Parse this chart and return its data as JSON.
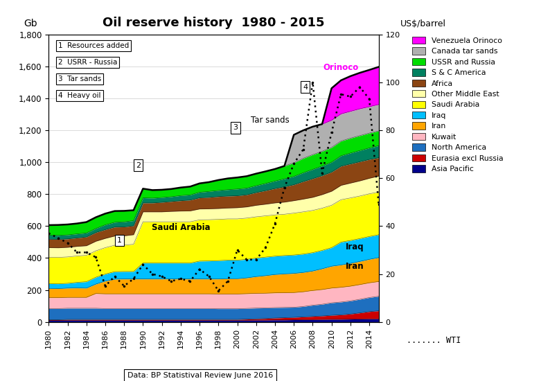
{
  "title": "Oil reserve history  1980 - 2015",
  "source_text": "Data: BP Statistival Review June 2016",
  "years": [
    1980,
    1981,
    1982,
    1983,
    1984,
    1985,
    1986,
    1987,
    1988,
    1989,
    1990,
    1991,
    1992,
    1993,
    1994,
    1995,
    1996,
    1997,
    1998,
    1999,
    2000,
    2001,
    2002,
    2003,
    2004,
    2005,
    2006,
    2007,
    2008,
    2009,
    2010,
    2011,
    2012,
    2013,
    2014,
    2015
  ],
  "ylim_left": [
    0,
    1800
  ],
  "ylim_right": [
    0,
    120
  ],
  "series": {
    "Asia Pacific": [
      10,
      10,
      11,
      11,
      11,
      11,
      11,
      11,
      11,
      11,
      11,
      11,
      11,
      11,
      11,
      11,
      11,
      11,
      11,
      11,
      11,
      11,
      12,
      12,
      13,
      13,
      14,
      15,
      15,
      16,
      17,
      17,
      18,
      19,
      20,
      20
    ],
    "Eurasia excl Russia": [
      4,
      4,
      5,
      5,
      5,
      5,
      5,
      5,
      5,
      5,
      5,
      5,
      5,
      5,
      5,
      5,
      5,
      5,
      5,
      5,
      5,
      7,
      8,
      10,
      12,
      14,
      15,
      17,
      20,
      22,
      25,
      28,
      32,
      38,
      45,
      50
    ],
    "North America": [
      70,
      70,
      70,
      70,
      70,
      70,
      68,
      68,
      68,
      68,
      68,
      68,
      68,
      68,
      68,
      68,
      68,
      68,
      67,
      67,
      67,
      67,
      67,
      66,
      65,
      64,
      63,
      65,
      70,
      73,
      78,
      80,
      82,
      85,
      88,
      91
    ],
    "Kuwait": [
      68,
      68,
      68,
      68,
      68,
      92,
      92,
      92,
      92,
      92,
      92,
      92,
      92,
      92,
      92,
      92,
      92,
      92,
      92,
      92,
      92,
      92,
      92,
      92,
      92,
      92,
      92,
      92,
      92,
      92,
      92,
      92,
      92,
      92,
      92,
      92
    ],
    "Iran": [
      58,
      57,
      58,
      59,
      58,
      59,
      80,
      92,
      93,
      93,
      93,
      93,
      93,
      93,
      93,
      93,
      93,
      93,
      94,
      96,
      96,
      99,
      105,
      110,
      115,
      118,
      120,
      121,
      122,
      130,
      137,
      140,
      143,
      145,
      147,
      150
    ],
    "Iraq": [
      30,
      30,
      30,
      35,
      40,
      43,
      44,
      47,
      47,
      47,
      100,
      100,
      100,
      100,
      100,
      100,
      112,
      113,
      115,
      116,
      116,
      116,
      116,
      116,
      115,
      115,
      115,
      115,
      115,
      115,
      116,
      143,
      143,
      143,
      143,
      143
    ],
    "Saudi Arabia": [
      165,
      165,
      165,
      165,
      165,
      165,
      165,
      165,
      165,
      170,
      258,
      258,
      258,
      258,
      258,
      258,
      258,
      258,
      258,
      258,
      258,
      258,
      258,
      258,
      258,
      258,
      262,
      264,
      264,
      264,
      265,
      265,
      266,
      266,
      267,
      267
    ],
    "Other Middle East": [
      60,
      60,
      60,
      60,
      60,
      60,
      58,
      58,
      58,
      60,
      62,
      62,
      62,
      65,
      67,
      68,
      68,
      68,
      68,
      68,
      70,
      70,
      72,
      73,
      75,
      76,
      78,
      80,
      82,
      85,
      88,
      90,
      93,
      95,
      97,
      100
    ],
    "Africa": [
      53,
      53,
      53,
      53,
      55,
      55,
      55,
      56,
      56,
      56,
      56,
      56,
      60,
      62,
      65,
      68,
      70,
      72,
      75,
      75,
      75,
      76,
      80,
      85,
      90,
      96,
      100,
      110,
      117,
      119,
      120,
      120,
      120,
      120,
      118,
      115
    ],
    "S & C America": [
      25,
      25,
      25,
      25,
      25,
      25,
      30,
      30,
      32,
      32,
      32,
      30,
      30,
      30,
      32,
      32,
      35,
      37,
      38,
      40,
      42,
      42,
      43,
      45,
      47,
      50,
      52,
      55,
      58,
      60,
      62,
      65,
      68,
      70,
      72,
      75
    ],
    "USSR and Russia": [
      63,
      65,
      65,
      65,
      68,
      70,
      70,
      70,
      68,
      65,
      57,
      50,
      48,
      48,
      50,
      52,
      55,
      58,
      65,
      70,
      72,
      74,
      75,
      75,
      75,
      80,
      85,
      90,
      92,
      92,
      92,
      92,
      93,
      93,
      93,
      93
    ],
    "Canada tar sands": [
      0,
      0,
      0,
      0,
      0,
      0,
      0,
      0,
      0,
      0,
      0,
      0,
      0,
      0,
      0,
      0,
      0,
      0,
      0,
      0,
      0,
      0,
      0,
      0,
      0,
      0,
      175,
      175,
      175,
      170,
      170,
      170,
      168,
      168,
      165,
      165
    ],
    "Venezuela Orinoco": [
      0,
      0,
      0,
      0,
      0,
      0,
      0,
      0,
      0,
      0,
      0,
      0,
      0,
      0,
      0,
      0,
      0,
      0,
      0,
      0,
      0,
      0,
      0,
      0,
      0,
      0,
      0,
      0,
      0,
      0,
      200,
      210,
      220,
      225,
      230,
      235
    ]
  },
  "colors": {
    "Asia Pacific": "#00008B",
    "Eurasia excl Russia": "#CC0000",
    "North America": "#1E6FBF",
    "Kuwait": "#FFB6C1",
    "Iran": "#FFA500",
    "Iraq": "#00BFFF",
    "Saudi Arabia": "#FFFF00",
    "Other Middle East": "#FFFFAA",
    "Africa": "#8B4513",
    "S & C America": "#008060",
    "USSR and Russia": "#00DD00",
    "Canada tar sands": "#B0B0B0",
    "Venezuela Orinoco": "#FF00FF"
  },
  "wti": {
    "years": [
      1980,
      1981,
      1982,
      1983,
      1984,
      1985,
      1986,
      1987,
      1988,
      1989,
      1990,
      1991,
      1992,
      1993,
      1994,
      1995,
      1996,
      1997,
      1998,
      1999,
      2000,
      2001,
      2002,
      2003,
      2004,
      2005,
      2006,
      2007,
      2008,
      2009,
      2010,
      2011,
      2012,
      2013,
      2014,
      2015
    ],
    "prices": [
      37,
      35,
      33,
      29,
      29,
      27,
      15,
      19,
      15,
      18,
      24,
      20,
      19,
      17,
      18,
      17,
      22,
      19,
      13,
      17,
      30,
      26,
      26,
      31,
      41,
      56,
      66,
      72,
      100,
      62,
      79,
      95,
      94,
      98,
      93,
      49
    ]
  },
  "legend_entries": [
    [
      "Venezuela Orinoco",
      "#FF00FF"
    ],
    [
      "Canada tar sands",
      "#B0B0B0"
    ],
    [
      "USSR and Russia",
      "#00DD00"
    ],
    [
      "S & C America",
      "#008060"
    ],
    [
      "Africa",
      "#8B4513"
    ],
    [
      "Other Middle East",
      "#FFFFAA"
    ],
    [
      "Saudi Arabia",
      "#FFFF00"
    ],
    [
      "Iraq",
      "#00BFFF"
    ],
    [
      "Iran",
      "#FFA500"
    ],
    [
      "Kuwait",
      "#FFB6C1"
    ],
    [
      "North America",
      "#1E6FBF"
    ],
    [
      "Eurasia excl Russia",
      "#CC0000"
    ],
    [
      "Asia Pacific",
      "#00008B"
    ]
  ],
  "stack_order": [
    "Asia Pacific",
    "Eurasia excl Russia",
    "North America",
    "Kuwait",
    "Iran",
    "Iraq",
    "Saudi Arabia",
    "Other Middle East",
    "Africa",
    "S & C America",
    "USSR and Russia",
    "Canada tar sands",
    "Venezuela Orinoco"
  ],
  "left_boxes": [
    [
      1981,
      1730,
      "1  Resources added"
    ],
    [
      1981,
      1625,
      "2  USRR - Russia"
    ],
    [
      1981,
      1520,
      "3  Tar sands"
    ],
    [
      1981,
      1415,
      "4  Heavy oil"
    ]
  ],
  "chart_number_labels": [
    [
      1987.5,
      510,
      "1"
    ],
    [
      1989.5,
      980,
      "2"
    ],
    [
      1999.8,
      1215,
      "3"
    ],
    [
      2007.2,
      1470,
      "4"
    ]
  ],
  "text_labels": [
    [
      1994,
      590,
      "Saudi Arabia",
      "bold",
      "#000000"
    ],
    [
      2012.5,
      470,
      "Iraq",
      "bold",
      "#000000"
    ],
    [
      2012.5,
      350,
      "Iran",
      "bold",
      "#000000"
    ],
    [
      2011.0,
      1590,
      "Orinoco",
      "bold",
      "#FF00FF"
    ],
    [
      2003.5,
      1262,
      "Tar sands",
      "normal",
      "#000000"
    ]
  ]
}
